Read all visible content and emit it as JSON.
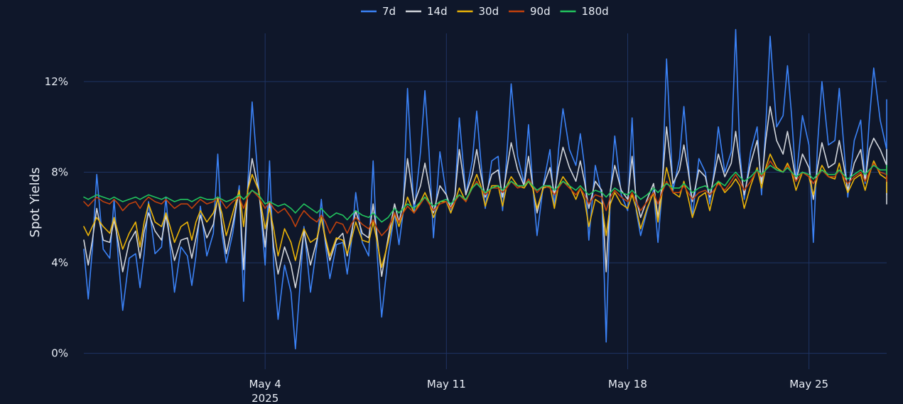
{
  "chart_data": {
    "type": "line",
    "title": "",
    "xlabel": "",
    "ylabel": "Spot Yields",
    "x_start": "2025-04-27",
    "x_end": "2025-05-28",
    "xlim": [
      "2025-04-27",
      "2025-05-28"
    ],
    "ylim": [
      -0.7,
      14.6
    ],
    "y_ticks": [
      {
        "value": 0,
        "label": "0%"
      },
      {
        "value": 4,
        "label": "4%"
      },
      {
        "value": 8,
        "label": "8%"
      },
      {
        "value": 12,
        "label": "12%"
      }
    ],
    "x_ticks": [
      {
        "date": "2025-05-04",
        "label": "May 4",
        "sublabel": "2025"
      },
      {
        "date": "2025-05-11",
        "label": "May 11",
        "sublabel": ""
      },
      {
        "date": "2025-05-18",
        "label": "May 18",
        "sublabel": ""
      },
      {
        "date": "2025-05-25",
        "label": "May 25",
        "sublabel": ""
      }
    ],
    "grid": true,
    "legend_position": "top-center",
    "series": [
      {
        "name": "7d",
        "color": "#3b82f6",
        "x": [
          "2025-04-27",
          "2025-04-28",
          "2025-04-29",
          "2025-04-30",
          "2025-05-01",
          "2025-05-02",
          "2025-05-03",
          "2025-05-04",
          "2025-05-05",
          "2025-05-06",
          "2025-05-07",
          "2025-05-08",
          "2025-05-09",
          "2025-05-10",
          "2025-05-11",
          "2025-05-12",
          "2025-05-13",
          "2025-05-14",
          "2025-05-15",
          "2025-05-16",
          "2025-05-17",
          "2025-05-18",
          "2025-05-19",
          "2025-05-20",
          "2025-05-21",
          "2025-05-22",
          "2025-05-23",
          "2025-05-24",
          "2025-05-25",
          "2025-05-26",
          "2025-05-27",
          "2025-05-28"
        ],
        "values": [
          4.6,
          4.2,
          4.4,
          4.7,
          4.3,
          5.3,
          7.4,
          3.9,
          2.7,
          4.8,
          4.9,
          4.3,
          6.2,
          8.9,
          7.0,
          8.5,
          8.7,
          7.5,
          9.0,
          8.3,
          7.0,
          6.3,
          7.2,
          8.6,
          8.0,
          8.9,
          10.0,
          10.5,
          9.2,
          9.4,
          10.3,
          9.0
        ],
        "min_values": [
          2.4,
          1.9,
          2.9,
          2.7,
          3.0,
          4.0,
          2.3,
          1.5,
          0.2,
          3.3,
          3.5,
          1.6,
          4.8,
          5.1,
          6.2,
          6.4,
          6.3,
          5.2,
          6.4,
          5.0,
          0.5,
          5.2,
          4.9,
          6.0,
          6.6,
          6.8,
          7.0,
          7.6,
          4.9,
          6.9,
          7.5,
          7.0
        ],
        "max_values": [
          7.9,
          6.8,
          6.7,
          6.9,
          6.5,
          8.8,
          11.1,
          8.5,
          5.6,
          6.8,
          7.1,
          8.5,
          11.7,
          11.6,
          10.4,
          10.7,
          11.9,
          10.1,
          10.8,
          9.7,
          9.6,
          10.4,
          13.0,
          10.9,
          10.0,
          14.3,
          14.0,
          12.7,
          12.0,
          11.7,
          12.6,
          11.2
        ]
      },
      {
        "name": "14d",
        "color": "#d1d5db",
        "x": [
          "2025-04-27",
          "2025-04-28",
          "2025-04-29",
          "2025-04-30",
          "2025-05-01",
          "2025-05-02",
          "2025-05-03",
          "2025-05-04",
          "2025-05-05",
          "2025-05-06",
          "2025-05-07",
          "2025-05-08",
          "2025-05-09",
          "2025-05-10",
          "2025-05-11",
          "2025-05-12",
          "2025-05-13",
          "2025-05-14",
          "2025-05-15",
          "2025-05-16",
          "2025-05-17",
          "2025-05-18",
          "2025-05-19",
          "2025-05-20",
          "2025-05-21",
          "2025-05-22",
          "2025-05-23",
          "2025-05-24",
          "2025-05-25",
          "2025-05-26",
          "2025-05-27",
          "2025-05-28"
        ],
        "values": [
          5.0,
          4.9,
          5.4,
          5.0,
          5.1,
          5.7,
          7.2,
          4.7,
          3.9,
          5.0,
          5.3,
          5.1,
          6.6,
          7.4,
          7.0,
          7.9,
          8.1,
          7.4,
          8.2,
          7.6,
          7.2,
          6.8,
          7.5,
          8.1,
          7.8,
          8.4,
          9.4,
          8.8,
          8.2,
          8.4,
          9.0,
          8.3
        ],
        "min_values": [
          3.9,
          3.6,
          4.2,
          4.1,
          4.2,
          4.4,
          3.7,
          3.5,
          2.9,
          4.1,
          4.3,
          3.4,
          5.8,
          6.2,
          6.4,
          6.9,
          6.9,
          6.2,
          7.0,
          6.4,
          3.6,
          6.0,
          6.0,
          6.7,
          6.9,
          7.0,
          7.5,
          7.6,
          6.8,
          7.2,
          7.6,
          6.6
        ],
        "max_values": [
          6.4,
          5.9,
          6.2,
          6.1,
          6.1,
          6.9,
          8.6,
          6.7,
          5.4,
          6.0,
          6.3,
          6.6,
          8.6,
          8.4,
          9.0,
          9.0,
          9.3,
          8.7,
          9.1,
          8.5,
          8.3,
          8.7,
          10.0,
          9.2,
          8.8,
          9.8,
          10.9,
          9.8,
          9.3,
          9.4,
          9.5,
          9.0
        ]
      },
      {
        "name": "30d",
        "color": "#eab308",
        "x": [
          "2025-04-27",
          "2025-04-28",
          "2025-04-29",
          "2025-04-30",
          "2025-05-01",
          "2025-05-02",
          "2025-05-03",
          "2025-05-04",
          "2025-05-05",
          "2025-05-06",
          "2025-05-07",
          "2025-05-08",
          "2025-05-09",
          "2025-05-10",
          "2025-05-11",
          "2025-05-12",
          "2025-05-13",
          "2025-05-14",
          "2025-05-15",
          "2025-05-16",
          "2025-05-17",
          "2025-05-18",
          "2025-05-19",
          "2025-05-20",
          "2025-05-21",
          "2025-05-22",
          "2025-05-23",
          "2025-05-24",
          "2025-05-25",
          "2025-05-26",
          "2025-05-27",
          "2025-05-28"
        ],
        "values": [
          5.6,
          5.3,
          5.8,
          5.6,
          5.8,
          6.2,
          7.2,
          5.5,
          4.9,
          5.1,
          5.0,
          4.9,
          6.2,
          6.7,
          6.7,
          7.4,
          7.4,
          7.3,
          7.4,
          6.8,
          6.6,
          6.4,
          7.1,
          6.9,
          7.1,
          7.4,
          8.2,
          8.0,
          7.8,
          7.7,
          7.9,
          7.7
        ],
        "min_values": [
          5.2,
          4.6,
          4.7,
          4.9,
          5.0,
          5.2,
          5.6,
          4.3,
          4.1,
          4.3,
          4.4,
          3.8,
          5.6,
          6.0,
          6.2,
          6.5,
          6.5,
          6.4,
          6.4,
          5.6,
          5.2,
          5.5,
          5.8,
          6.0,
          6.3,
          6.4,
          7.3,
          7.2,
          7.0,
          7.1,
          7.2,
          7.1
        ],
        "max_values": [
          6.0,
          6.0,
          6.6,
          6.2,
          6.3,
          6.8,
          7.9,
          6.4,
          5.5,
          6.0,
          5.8,
          5.8,
          6.9,
          7.1,
          7.3,
          7.9,
          7.8,
          7.6,
          7.8,
          7.3,
          7.1,
          7.0,
          8.2,
          7.6,
          7.6,
          7.7,
          8.8,
          8.4,
          8.3,
          8.4,
          8.5,
          8.2
        ]
      },
      {
        "name": "90d",
        "color": "#c2410c",
        "x": [
          "2025-04-27",
          "2025-04-28",
          "2025-04-29",
          "2025-04-30",
          "2025-05-01",
          "2025-05-02",
          "2025-05-03",
          "2025-05-04",
          "2025-05-05",
          "2025-05-06",
          "2025-05-07",
          "2025-05-08",
          "2025-05-09",
          "2025-05-10",
          "2025-05-11",
          "2025-05-12",
          "2025-05-13",
          "2025-05-14",
          "2025-05-15",
          "2025-05-16",
          "2025-05-17",
          "2025-05-18",
          "2025-05-19",
          "2025-05-20",
          "2025-05-21",
          "2025-05-22",
          "2025-05-23",
          "2025-05-24",
          "2025-05-25",
          "2025-05-26",
          "2025-05-27",
          "2025-05-28"
        ],
        "values": [
          6.7,
          6.6,
          6.7,
          6.6,
          6.6,
          6.7,
          6.9,
          6.4,
          6.0,
          5.8,
          5.7,
          5.5,
          6.2,
          6.6,
          6.7,
          7.3,
          7.3,
          7.4,
          7.3,
          7.0,
          6.9,
          6.7,
          7.1,
          7.1,
          7.2,
          7.6,
          8.1,
          8.0,
          7.8,
          7.8,
          8.0,
          7.9
        ],
        "min_values": [
          6.5,
          6.3,
          6.4,
          6.4,
          6.4,
          6.4,
          6.4,
          6.2,
          5.6,
          5.3,
          5.3,
          5.2,
          5.8,
          6.3,
          6.4,
          7.0,
          7.1,
          7.1,
          7.0,
          6.6,
          6.3,
          6.3,
          6.6,
          6.8,
          7.0,
          7.2,
          7.8,
          7.6,
          7.5,
          7.5,
          7.6,
          7.6
        ],
        "max_values": [
          6.9,
          6.8,
          6.9,
          6.8,
          6.8,
          6.9,
          7.2,
          6.7,
          6.3,
          6.1,
          6.0,
          5.9,
          6.5,
          6.9,
          7.0,
          7.6,
          7.6,
          7.7,
          7.6,
          7.3,
          7.2,
          7.1,
          7.6,
          7.4,
          7.5,
          7.9,
          8.5,
          8.3,
          8.1,
          8.1,
          8.4,
          8.2
        ]
      },
      {
        "name": "180d",
        "color": "#22c55e",
        "x": [
          "2025-04-27",
          "2025-04-28",
          "2025-04-29",
          "2025-04-30",
          "2025-05-01",
          "2025-05-02",
          "2025-05-03",
          "2025-05-04",
          "2025-05-05",
          "2025-05-06",
          "2025-05-07",
          "2025-05-08",
          "2025-05-09",
          "2025-05-10",
          "2025-05-11",
          "2025-05-12",
          "2025-05-13",
          "2025-05-14",
          "2025-05-15",
          "2025-05-16",
          "2025-05-17",
          "2025-05-18",
          "2025-05-19",
          "2025-05-20",
          "2025-05-21",
          "2025-05-22",
          "2025-05-23",
          "2025-05-24",
          "2025-05-25",
          "2025-05-26",
          "2025-05-27",
          "2025-05-28"
        ],
        "values": [
          6.9,
          6.8,
          6.9,
          6.8,
          6.8,
          6.8,
          7.0,
          6.6,
          6.4,
          6.2,
          6.1,
          6.0,
          6.4,
          6.7,
          6.8,
          7.3,
          7.4,
          7.4,
          7.4,
          7.2,
          7.1,
          7.0,
          7.3,
          7.3,
          7.4,
          7.8,
          8.1,
          8.0,
          7.9,
          7.9,
          8.1,
          8.1
        ],
        "min_values": [
          6.8,
          6.7,
          6.8,
          6.7,
          6.7,
          6.7,
          6.8,
          6.5,
          6.2,
          6.0,
          5.9,
          5.8,
          6.2,
          6.5,
          6.6,
          7.1,
          7.2,
          7.2,
          7.2,
          7.0,
          6.9,
          6.8,
          7.1,
          7.1,
          7.2,
          7.6,
          7.9,
          7.8,
          7.7,
          7.7,
          7.9,
          7.9
        ],
        "max_values": [
          7.0,
          6.9,
          7.0,
          6.9,
          6.9,
          6.9,
          7.2,
          6.7,
          6.6,
          6.4,
          6.3,
          6.2,
          6.6,
          6.9,
          7.0,
          7.5,
          7.6,
          7.6,
          7.6,
          7.4,
          7.3,
          7.2,
          7.5,
          7.5,
          7.6,
          8.0,
          8.3,
          8.2,
          8.1,
          8.1,
          8.3,
          8.3
        ]
      }
    ]
  }
}
